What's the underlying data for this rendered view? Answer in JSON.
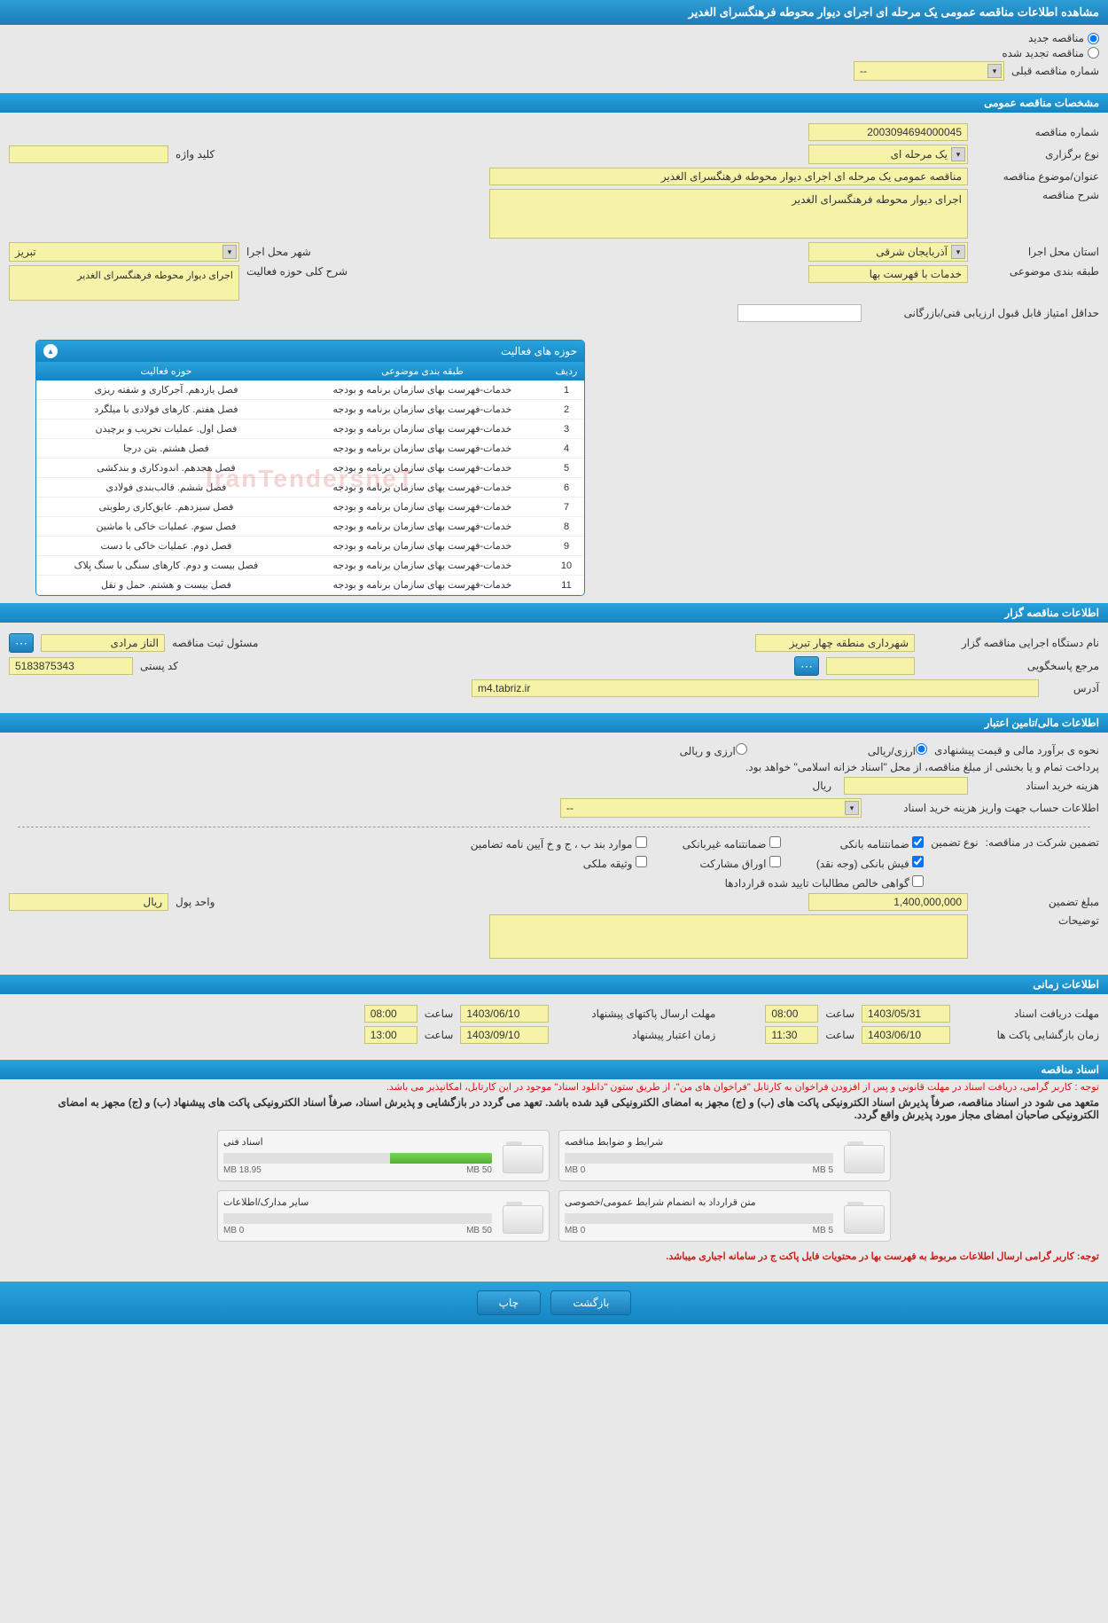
{
  "page_title": "مشاهده اطلاعات مناقصه عمومی یک مرحله ای اجرای دیوار محوطه فرهنگسرای الغدیر",
  "top_radios": {
    "new_label": "مناقصه جدید",
    "renewed_label": "مناقصه تجدید شده",
    "prev_number_label": "شماره مناقصه قبلی",
    "prev_number_value": "--"
  },
  "sections": {
    "general": "مشخصات مناقصه عمومی",
    "organizer": "اطلاعات مناقصه گزار",
    "financial": "اطلاعات مالی/تامین اعتبار",
    "timing": "اطلاعات زمانی",
    "documents": "اسناد مناقصه"
  },
  "general": {
    "tender_number_label": "شماره مناقصه",
    "tender_number": "2003094694000045",
    "type_label": "نوع برگزاری",
    "type_value": "یک مرحله ای",
    "keyword_label": "کلید واژه",
    "keyword_value": "",
    "title_label": "عنوان/موضوع مناقصه",
    "title_value": "مناقصه عمومی یک مرحله ای اجرای دیوار محوطه فرهنگسرای الغدیر",
    "desc_label": "شرح مناقصه",
    "desc_value": "اجرای دیوار محوطه فرهنگسرای الغدیر",
    "province_label": "استان محل اجرا",
    "province_value": "آذربایجان شرقی",
    "city_label": "شهر محل اجرا",
    "city_value": "تبریز",
    "category_label": "طبقه بندی موضوعی",
    "category_value": "خدمات با فهرست بها",
    "scope_label": "شرح کلی حوزه فعالیت",
    "scope_value": "اجرای دیوار محوطه فرهنگسرای الغدیر",
    "min_score_label": "حداقل امتیاز قابل قبول ارزیابی فنی/بازرگانی",
    "min_score_value": ""
  },
  "activities": {
    "panel_title": "حوزه های فعالیت",
    "columns": {
      "idx": "ردیف",
      "cat": "طبقه بندی موضوعی",
      "scope": "حوزه فعالیت"
    },
    "rows": [
      {
        "idx": "1",
        "cat": "خدمات-فهرست بهای سازمان برنامه و بودجه",
        "scope": "فصل یازدهم. آجرکاری و شفته ریزی"
      },
      {
        "idx": "2",
        "cat": "خدمات-فهرست بهای سازمان برنامه و بودجه",
        "scope": "فصل هفتم. کارهای فولادی با میلگرد"
      },
      {
        "idx": "3",
        "cat": "خدمات-فهرست بهای سازمان برنامه و بودجه",
        "scope": "فصل اول. عملیات تخریب و برچیدن"
      },
      {
        "idx": "4",
        "cat": "خدمات-فهرست بهای سازمان برنامه و بودجه",
        "scope": "فصل هشتم. بتن درجا"
      },
      {
        "idx": "5",
        "cat": "خدمات-فهرست بهای سازمان برنامه و بودجه",
        "scope": "فصل هجدهم. اندودکاری و بندکشی"
      },
      {
        "idx": "6",
        "cat": "خدمات-فهرست بهای سازمان برنامه و بودجه",
        "scope": "فصل ششم. قالب‌بندی فولادی"
      },
      {
        "idx": "7",
        "cat": "خدمات-فهرست بهای سازمان برنامه و بودجه",
        "scope": "فصل سیزدهم. عایق‌کاری رطوبتی"
      },
      {
        "idx": "8",
        "cat": "خدمات-فهرست بهای سازمان برنامه و بودجه",
        "scope": "فصل سوم. عملیات خاکی با ماشین"
      },
      {
        "idx": "9",
        "cat": "خدمات-فهرست بهای سازمان برنامه و بودجه",
        "scope": "فصل دوم. عملیات خاکی با دست"
      },
      {
        "idx": "10",
        "cat": "خدمات-فهرست بهای سازمان برنامه و بودجه",
        "scope": "فصل بیست و دوم. کارهای سنگی با سنگ پلاک"
      },
      {
        "idx": "11",
        "cat": "خدمات-فهرست بهای سازمان برنامه و بودجه",
        "scope": "فصل بیست و هشتم. حمل و نقل"
      }
    ],
    "watermark": "IranTendersneT"
  },
  "organizer": {
    "name_label": "نام دستگاه اجرایی مناقصه گزار",
    "name_value": "شهرداری منطقه چهار تبریز",
    "reg_officer_label": "مسئول ثبت مناقصه",
    "reg_officer_value": "الناز مرادی",
    "responder_label": "مرجع پاسخگویی",
    "responder_value": "",
    "postal_label": "کد پستی",
    "postal_value": "5183875343",
    "address_label": "آدرس",
    "address_value": "m4.tabriz.ir"
  },
  "financial": {
    "estimate_label": "نحوه ی برآورد مالی و قیمت پیشنهادی",
    "opt_currency": "ارزی/ریالی",
    "opt_currency2": "ارزی و ریالی",
    "payment_note": "پرداخت تمام و یا بخشی از مبلغ مناقصه، از محل \"اسناد خزانه اسلامی\" خواهد بود.",
    "doc_cost_label": "هزینه خرید اسناد",
    "doc_cost_value": "",
    "unit": "ریال",
    "account_label": "اطلاعات حساب جهت واریز هزینه خرید اسناد",
    "account_value": "--",
    "guarantee_label": "تضمین شرکت در مناقصه:",
    "guarantee_type_label": "نوع تضمین",
    "chk_bank": "ضمانتنامه بانکی",
    "chk_nonbank": "ضمانتنامه غیربانکی",
    "chk_items": "موارد بند ب ، ج و خ آیین نامه تضامین",
    "chk_cash": "فیش بانکی (وجه نقد)",
    "chk_stock": "اوراق مشارکت",
    "chk_property": "وثیقه ملکی",
    "chk_cert": "گواهی خالص مطالبات تایید شده قراردادها",
    "amount_label": "مبلغ تضمین",
    "amount_value": "1,400,000,000",
    "amount_unit_label": "واحد پول",
    "amount_unit": "ریال",
    "notes_label": "توضیحات",
    "notes_value": ""
  },
  "timing": {
    "receive_deadline_label": "مهلت دریافت اسناد",
    "receive_deadline_date": "1403/05/31",
    "receive_deadline_time": "08:00",
    "send_deadline_label": "مهلت ارسال پاکتهای پیشنهاد",
    "send_deadline_date": "1403/06/10",
    "send_deadline_time": "08:00",
    "open_label": "زمان بازگشایی پاکت ها",
    "open_date": "1403/06/10",
    "open_time": "11:30",
    "validity_label": "زمان اعتبار پیشنهاد",
    "validity_date": "1403/09/10",
    "validity_time": "13:00",
    "hour_label": "ساعت"
  },
  "documents": {
    "notice1": "توجه : کاربر گرامی، دریافت اسناد در مهلت قانونی و پس از افزودن فراخوان به کارتابل \"فراخوان های من\"، از طریق ستون \"دانلود اسناد\" موجود در این کارتابل، امکانپذیر می باشد.",
    "notice2": "متعهد می شود در اسناد مناقصه، صرفاً پذیرش اسناد الکترونیکی پاکت های (ب) و (ج) مجهز به امضای الکترونیکی قید شده باشد. تعهد می گردد در بازگشایی و پذیرش اسناد، صرفاً اسناد الکترونیکی پاکت های پیشنهاد (ب) و (ج) مجهز به امضای الکترونیکی صاحبان امضای مجاز مورد پذیرش واقع گردد.",
    "notice3": "توجه: کاربر گرامی ارسال اطلاعات مربوط به فهرست بها در محتویات فایل پاکت ج در سامانه اجباری میباشد.",
    "cards": [
      {
        "title": "شرایط و ضوابط مناقصه",
        "used": "0 MB",
        "max": "5 MB",
        "pct": 0
      },
      {
        "title": "اسناد فنی",
        "used": "18.95 MB",
        "max": "50 MB",
        "pct": 38
      },
      {
        "title": "متن قرارداد به انضمام شرایط عمومی/خصوصی",
        "used": "0 MB",
        "max": "5 MB",
        "pct": 0
      },
      {
        "title": "سایر مدارک/اطلاعات",
        "used": "0 MB",
        "max": "50 MB",
        "pct": 0
      }
    ]
  },
  "buttons": {
    "back": "بازگشت",
    "print": "چاپ"
  }
}
